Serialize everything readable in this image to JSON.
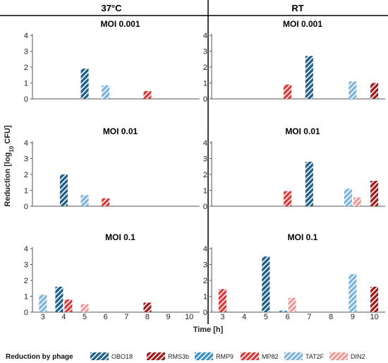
{
  "header": {
    "left_title": "37°C",
    "right_title": "RT"
  },
  "y_axis_label": "Reduction [log10 CFU]",
  "x_axis_label": "Time [h]",
  "legend": {
    "title": "Reduction by phage",
    "items": [
      {
        "key": "OBO18",
        "label": "OBO18"
      },
      {
        "key": "RMS3b",
        "label": "RMS3b"
      },
      {
        "key": "RMP9",
        "label": "RMP9"
      },
      {
        "key": "MP82",
        "label": "MP82"
      },
      {
        "key": "TAT2F",
        "label": "TAT2F"
      },
      {
        "key": "DIN2",
        "label": "DIN2"
      }
    ]
  },
  "phage_styles": {
    "OBO18": {
      "color": "#1f5f8b",
      "stripe": "#ffffff",
      "opacity": 1
    },
    "RMS3b": {
      "color": "#a11d1d",
      "stripe": "#ffffff",
      "opacity": 1
    },
    "RMP9": {
      "color": "#3b8fc0",
      "stripe": "#ffffff",
      "opacity": 1
    },
    "MP82": {
      "color": "#d93b3b",
      "stripe": "#ffffff",
      "opacity": 1
    },
    "TAT2F": {
      "color": "#7db4dc",
      "stripe": "#ffffff",
      "opacity": 1
    },
    "DIN2": {
      "color": "#ee9a98",
      "stripe": "#ffffff",
      "opacity": 1
    }
  },
  "chart_data": {
    "type": "bar",
    "categories": [
      "3",
      "4",
      "5",
      "6",
      "7",
      "8",
      "9",
      "10"
    ],
    "xlabel": "Time [h]",
    "ylabel": "Reduction [log10 CFU]",
    "ylim": [
      0,
      4
    ],
    "yticks": [
      0,
      1,
      2,
      3,
      4
    ],
    "panels": [
      {
        "column": "37°C",
        "title": "MOI 0.001",
        "bars": [
          {
            "time": 5,
            "phage": "OBO18",
            "value": 1.9
          },
          {
            "time": 6,
            "phage": "TAT2F",
            "value": 0.85
          },
          {
            "time": 8,
            "phage": "MP82",
            "value": 0.5
          }
        ]
      },
      {
        "column": "RT",
        "title": "MOI 0.001",
        "bars": [
          {
            "time": 6,
            "phage": "MP82",
            "value": 0.9
          },
          {
            "time": 7,
            "phage": "OBO18",
            "value": 2.7
          },
          {
            "time": 9,
            "phage": "TAT2F",
            "value": 1.1
          },
          {
            "time": 10,
            "phage": "RMS3b",
            "value": 1.0
          }
        ]
      },
      {
        "column": "37°C",
        "title": "MOI 0.01",
        "bars": [
          {
            "time": 4,
            "phage": "OBO18",
            "value": 2.0
          },
          {
            "time": 5,
            "phage": "TAT2F",
            "value": 0.7
          },
          {
            "time": 6,
            "phage": "MP82",
            "value": 0.5
          }
        ]
      },
      {
        "column": "RT",
        "title": "MOI 0.01",
        "bars": [
          {
            "time": 6,
            "phage": "MP82",
            "value": 0.95
          },
          {
            "time": 7,
            "phage": "OBO18",
            "value": 2.8
          },
          {
            "time": 9,
            "phage": "TAT2F",
            "value": 1.1
          },
          {
            "time": 9,
            "phage": "DIN2",
            "value": 0.55
          },
          {
            "time": 10,
            "phage": "RMS3b",
            "value": 1.6
          }
        ]
      },
      {
        "column": "37°C",
        "title": "MOI 0.1",
        "bars": [
          {
            "time": 3,
            "phage": "TAT2F",
            "value": 1.1
          },
          {
            "time": 4,
            "phage": "OBO18",
            "value": 1.6
          },
          {
            "time": 4,
            "phage": "MP82",
            "value": 0.8
          },
          {
            "time": 5,
            "phage": "DIN2",
            "value": 0.5
          },
          {
            "time": 8,
            "phage": "RMS3b",
            "value": 0.6
          }
        ]
      },
      {
        "column": "RT",
        "title": "MOI 0.1",
        "bars": [
          {
            "time": 3,
            "phage": "MP82",
            "value": 1.45
          },
          {
            "time": 5,
            "phage": "OBO18",
            "value": 3.5
          },
          {
            "time": 6,
            "phage": "RMP9",
            "value": 0.1
          },
          {
            "time": 6,
            "phage": "DIN2",
            "value": 0.9
          },
          {
            "time": 9,
            "phage": "TAT2F",
            "value": 2.4
          },
          {
            "time": 10,
            "phage": "RMS3b",
            "value": 1.6
          }
        ]
      }
    ]
  }
}
